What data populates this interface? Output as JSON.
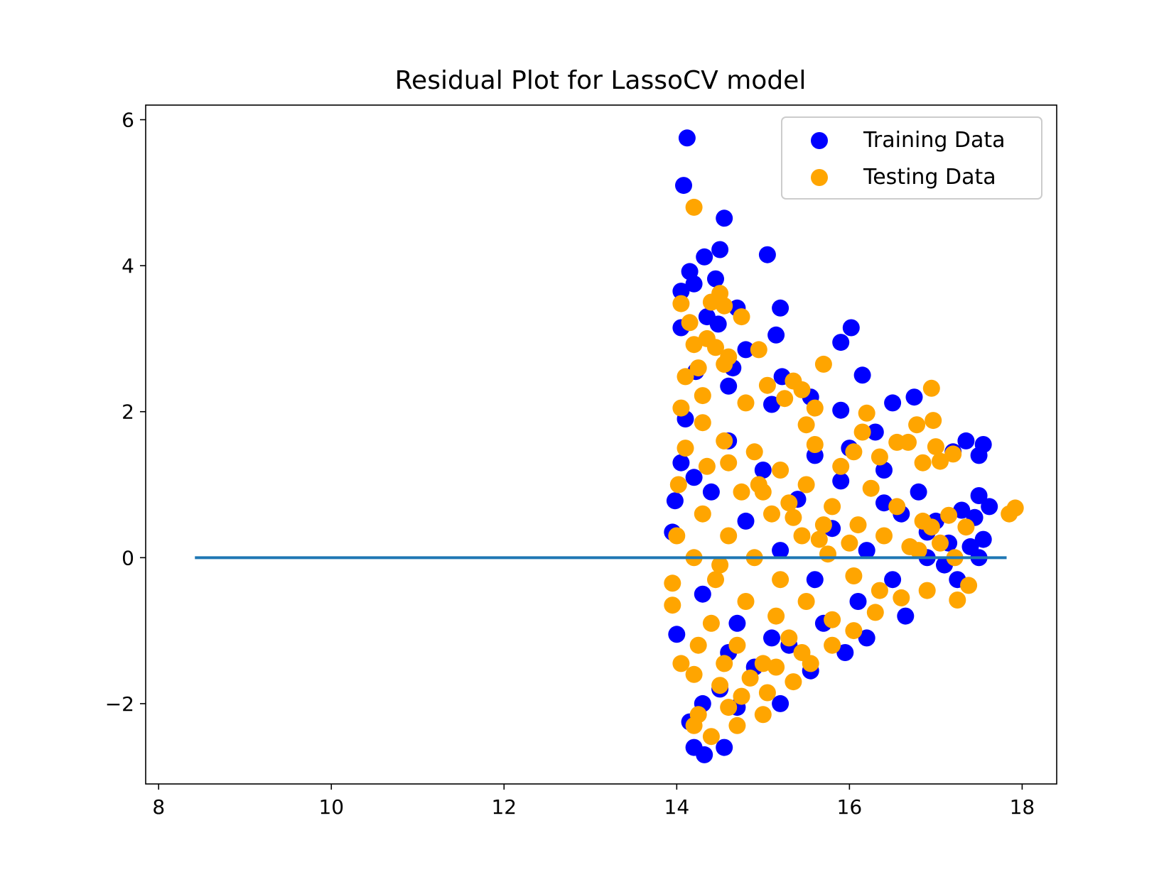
{
  "chart_data": {
    "type": "scatter",
    "title": "Residual Plot for LassoCV model",
    "xlabel": "",
    "ylabel": "",
    "xlim": [
      7.85,
      18.4
    ],
    "ylim": [
      -3.1,
      6.2
    ],
    "x_ticks": [
      8,
      10,
      12,
      14,
      16,
      18
    ],
    "y_ticks": [
      -2,
      0,
      2,
      4,
      6
    ],
    "x_tick_labels": [
      "8",
      "10",
      "12",
      "14",
      "16",
      "18"
    ],
    "y_tick_labels": [
      "−2",
      "0",
      "2",
      "4",
      "6"
    ],
    "grid": false,
    "legend_position": "top-right",
    "series": [
      {
        "name": "Training Data",
        "color": "#0000ff",
        "points": [
          [
            14.12,
            5.75
          ],
          [
            14.08,
            5.1
          ],
          [
            14.55,
            4.65
          ],
          [
            14.5,
            4.22
          ],
          [
            15.05,
            4.15
          ],
          [
            14.32,
            4.12
          ],
          [
            14.15,
            3.92
          ],
          [
            14.45,
            3.82
          ],
          [
            14.05,
            3.65
          ],
          [
            14.2,
            3.75
          ],
          [
            14.7,
            3.42
          ],
          [
            15.2,
            3.42
          ],
          [
            14.05,
            3.15
          ],
          [
            16.02,
            3.15
          ],
          [
            15.9,
            2.95
          ],
          [
            15.15,
            3.05
          ],
          [
            14.48,
            3.2
          ],
          [
            14.35,
            3.3
          ],
          [
            14.8,
            2.85
          ],
          [
            16.15,
            2.5
          ],
          [
            14.65,
            2.6
          ],
          [
            15.22,
            2.48
          ],
          [
            16.5,
            2.12
          ],
          [
            16.75,
            2.2
          ],
          [
            15.9,
            2.02
          ],
          [
            16.3,
            1.72
          ],
          [
            17.35,
            1.6
          ],
          [
            17.55,
            1.55
          ],
          [
            17.5,
            1.4
          ],
          [
            17.2,
            1.45
          ],
          [
            17.5,
            0.85
          ],
          [
            17.62,
            0.7
          ],
          [
            17.45,
            0.55
          ],
          [
            17.3,
            0.65
          ],
          [
            17.55,
            0.25
          ],
          [
            17.4,
            0.15
          ],
          [
            17.5,
            0.0
          ],
          [
            17.25,
            -0.3
          ],
          [
            17.1,
            -0.1
          ],
          [
            16.65,
            -0.8
          ],
          [
            16.2,
            -1.1
          ],
          [
            15.95,
            -1.3
          ],
          [
            15.55,
            -1.55
          ],
          [
            15.2,
            -2.0
          ],
          [
            14.7,
            -2.05
          ],
          [
            14.55,
            -2.6
          ],
          [
            14.32,
            -2.7
          ],
          [
            14.2,
            -2.6
          ],
          [
            14.15,
            -2.25
          ],
          [
            14.0,
            -1.05
          ],
          [
            13.95,
            0.35
          ],
          [
            13.98,
            0.78
          ],
          [
            14.05,
            1.3
          ],
          [
            14.1,
            1.9
          ],
          [
            14.22,
            2.55
          ],
          [
            14.6,
            2.35
          ],
          [
            15.1,
            2.1
          ],
          [
            15.55,
            2.2
          ],
          [
            16.0,
            1.5
          ],
          [
            16.4,
            1.2
          ],
          [
            16.8,
            0.9
          ],
          [
            17.0,
            0.5
          ],
          [
            16.9,
            0.0
          ],
          [
            16.5,
            -0.3
          ],
          [
            16.1,
            -0.6
          ],
          [
            15.7,
            -0.9
          ],
          [
            15.3,
            -1.2
          ],
          [
            14.9,
            -1.5
          ],
          [
            14.5,
            -1.8
          ],
          [
            14.3,
            -2.0
          ],
          [
            14.6,
            1.6
          ],
          [
            15.0,
            1.2
          ],
          [
            15.4,
            0.8
          ],
          [
            15.8,
            0.4
          ],
          [
            16.2,
            0.1
          ],
          [
            14.4,
            0.9
          ],
          [
            14.8,
            0.5
          ],
          [
            15.2,
            0.1
          ],
          [
            15.6,
            -0.3
          ],
          [
            14.3,
            -0.5
          ],
          [
            14.7,
            -0.9
          ],
          [
            15.1,
            -1.1
          ],
          [
            14.2,
            1.1
          ],
          [
            14.6,
            -1.3
          ],
          [
            16.6,
            0.6
          ],
          [
            16.9,
            0.35
          ],
          [
            17.15,
            0.2
          ],
          [
            16.4,
            0.75
          ],
          [
            15.9,
            1.05
          ],
          [
            15.6,
            1.4
          ]
        ]
      },
      {
        "name": "Testing Data",
        "color": "#ffa500",
        "points": [
          [
            14.2,
            4.8
          ],
          [
            14.5,
            3.62
          ],
          [
            14.05,
            3.48
          ],
          [
            14.4,
            3.5
          ],
          [
            14.55,
            3.45
          ],
          [
            14.75,
            3.3
          ],
          [
            14.15,
            3.22
          ],
          [
            14.35,
            3.0
          ],
          [
            14.2,
            2.92
          ],
          [
            14.45,
            2.88
          ],
          [
            14.95,
            2.85
          ],
          [
            14.6,
            2.75
          ],
          [
            14.55,
            2.65
          ],
          [
            14.25,
            2.6
          ],
          [
            15.7,
            2.65
          ],
          [
            16.95,
            2.32
          ],
          [
            15.05,
            2.36
          ],
          [
            15.35,
            2.42
          ],
          [
            15.45,
            2.3
          ],
          [
            15.25,
            2.18
          ],
          [
            14.1,
            2.48
          ],
          [
            14.3,
            2.22
          ],
          [
            14.05,
            2.05
          ],
          [
            14.8,
            2.12
          ],
          [
            15.6,
            2.05
          ],
          [
            16.2,
            1.98
          ],
          [
            16.97,
            1.88
          ],
          [
            16.78,
            1.82
          ],
          [
            15.5,
            1.82
          ],
          [
            16.15,
            1.72
          ],
          [
            17.0,
            1.52
          ],
          [
            17.2,
            1.42
          ],
          [
            17.05,
            1.32
          ],
          [
            16.85,
            1.3
          ],
          [
            16.55,
            1.58
          ],
          [
            16.68,
            1.58
          ],
          [
            16.35,
            1.38
          ],
          [
            16.05,
            1.45
          ],
          [
            17.15,
            0.58
          ],
          [
            17.35,
            0.42
          ],
          [
            16.95,
            0.42
          ],
          [
            17.05,
            0.2
          ],
          [
            17.22,
            0.0
          ],
          [
            16.8,
            0.1
          ],
          [
            16.9,
            -0.45
          ],
          [
            17.25,
            -0.58
          ],
          [
            17.38,
            -0.38
          ],
          [
            16.6,
            -0.55
          ],
          [
            17.85,
            0.6
          ],
          [
            17.92,
            0.68
          ],
          [
            14.05,
            -1.45
          ],
          [
            14.2,
            -1.6
          ],
          [
            14.5,
            -1.75
          ],
          [
            14.25,
            -2.15
          ],
          [
            14.6,
            -2.05
          ],
          [
            14.7,
            -2.3
          ],
          [
            14.4,
            -2.45
          ],
          [
            14.2,
            -2.3
          ],
          [
            14.75,
            -1.9
          ],
          [
            15.0,
            -2.15
          ],
          [
            15.05,
            -1.85
          ],
          [
            15.35,
            -1.7
          ],
          [
            15.55,
            -1.45
          ],
          [
            15.8,
            -1.2
          ],
          [
            16.05,
            -1.0
          ],
          [
            16.3,
            -0.75
          ],
          [
            13.95,
            -0.35
          ],
          [
            13.95,
            -0.65
          ],
          [
            14.0,
            0.3
          ],
          [
            14.02,
            1.0
          ],
          [
            14.1,
            1.5
          ],
          [
            14.3,
            1.85
          ],
          [
            14.55,
            1.6
          ],
          [
            14.9,
            1.45
          ],
          [
            15.2,
            1.2
          ],
          [
            15.5,
            1.0
          ],
          [
            15.8,
            0.7
          ],
          [
            16.1,
            0.45
          ],
          [
            16.4,
            0.3
          ],
          [
            16.7,
            0.15
          ],
          [
            14.3,
            0.6
          ],
          [
            14.6,
            0.3
          ],
          [
            14.9,
            0.0
          ],
          [
            15.2,
            -0.3
          ],
          [
            15.5,
            -0.6
          ],
          [
            15.8,
            -0.85
          ],
          [
            14.4,
            -0.9
          ],
          [
            14.7,
            -1.2
          ],
          [
            15.0,
            -1.45
          ],
          [
            15.3,
            -1.1
          ],
          [
            14.35,
            1.25
          ],
          [
            14.75,
            0.9
          ],
          [
            15.1,
            0.6
          ],
          [
            15.45,
            0.3
          ],
          [
            15.75,
            0.05
          ],
          [
            16.05,
            -0.25
          ],
          [
            16.35,
            -0.45
          ],
          [
            14.45,
            -0.3
          ],
          [
            14.8,
            -0.6
          ],
          [
            15.15,
            -0.8
          ],
          [
            15.6,
            1.55
          ],
          [
            15.9,
            1.25
          ],
          [
            16.25,
            0.95
          ],
          [
            16.55,
            0.7
          ],
          [
            16.85,
            0.5
          ],
          [
            14.2,
            0.0
          ],
          [
            14.5,
            -0.1
          ],
          [
            15.0,
            0.9
          ],
          [
            15.35,
            0.55
          ],
          [
            15.65,
            0.25
          ],
          [
            14.6,
            1.3
          ],
          [
            14.95,
            1.0
          ],
          [
            15.3,
            0.75
          ],
          [
            15.7,
            0.45
          ],
          [
            16.0,
            0.2
          ],
          [
            14.25,
            -1.2
          ],
          [
            14.55,
            -1.45
          ],
          [
            14.85,
            -1.65
          ],
          [
            15.15,
            -1.5
          ],
          [
            15.45,
            -1.3
          ]
        ]
      }
    ],
    "reference_line": {
      "y": 0,
      "x_range": [
        8.42,
        17.82
      ],
      "color": "#1f77b4"
    }
  }
}
